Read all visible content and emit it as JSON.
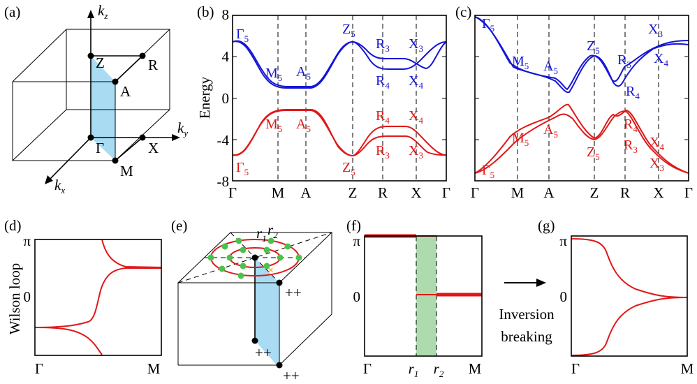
{
  "panels": {
    "a": "(a)",
    "b": "(b)",
    "c": "(c)",
    "d": "(d)",
    "e": "(e)",
    "f": "(f)",
    "g": "(g)"
  },
  "bz": {
    "kz": "k",
    "kz_sub": "z",
    "ky": "k",
    "ky_sub": "y",
    "kx": "k",
    "kx_sub": "x",
    "points": [
      "Z",
      "R",
      "A",
      "Γ",
      "X",
      "M"
    ]
  },
  "band": {
    "ylabel": "Energy",
    "yticks": [
      "8",
      "4",
      "0",
      "-4",
      "-8"
    ],
    "xticks": [
      "Γ",
      "M",
      "A",
      "Z",
      "R",
      "X",
      "Γ"
    ]
  },
  "labels_b": {
    "G5_top": "Γ",
    "M5_top": "M",
    "A5_top": "A",
    "Z5_top": "Z",
    "R3_top": "R",
    "X3_top": "X",
    "R4_top": "R",
    "X4_top": "X",
    "M5_bot": "M",
    "A5_bot": "A",
    "R4_bot": "R",
    "X4_bot": "X",
    "R3_bot": "R",
    "X3_bot": "X",
    "G5_bot": "Γ",
    "Z5_bot": "Z"
  },
  "labels_c": {
    "G5_top": "Γ",
    "M5_top": "M",
    "A5_top": "A",
    "Z5_top": "Z",
    "X3_top": "X",
    "R3_top": "R",
    "X4_top": "X",
    "R4_top": "R",
    "M5_bot": "M",
    "A5_bot": "A",
    "Z5_bot": "Z",
    "R4_bot": "R",
    "R3_bot": "R",
    "X4_bot": "X",
    "X3_bot": "X",
    "G5_bot": "Γ"
  },
  "subs": {
    "five": "5",
    "three": "3",
    "four": "4"
  },
  "wilson": {
    "ylabel": "Wilson loop",
    "yticks": [
      "π",
      "0"
    ],
    "xticks": [
      "Γ",
      "M"
    ]
  },
  "panel_e": {
    "r": "r",
    "r1": "1",
    "r2": "2",
    "pp": "++"
  },
  "panel_f": {
    "yticks": [
      "π",
      "0"
    ],
    "xticks": [
      "Γ",
      "r",
      "r",
      "M"
    ],
    "xsub": [
      "1",
      "2"
    ]
  },
  "arrow_text": [
    "Inversion",
    "breaking"
  ],
  "colors": {
    "blue": "#1515d6",
    "red": "#e01818",
    "plane": "#a9dcf3",
    "green": "#4cc24c",
    "band": "#aedbae",
    "orange": "#f5a623"
  }
}
